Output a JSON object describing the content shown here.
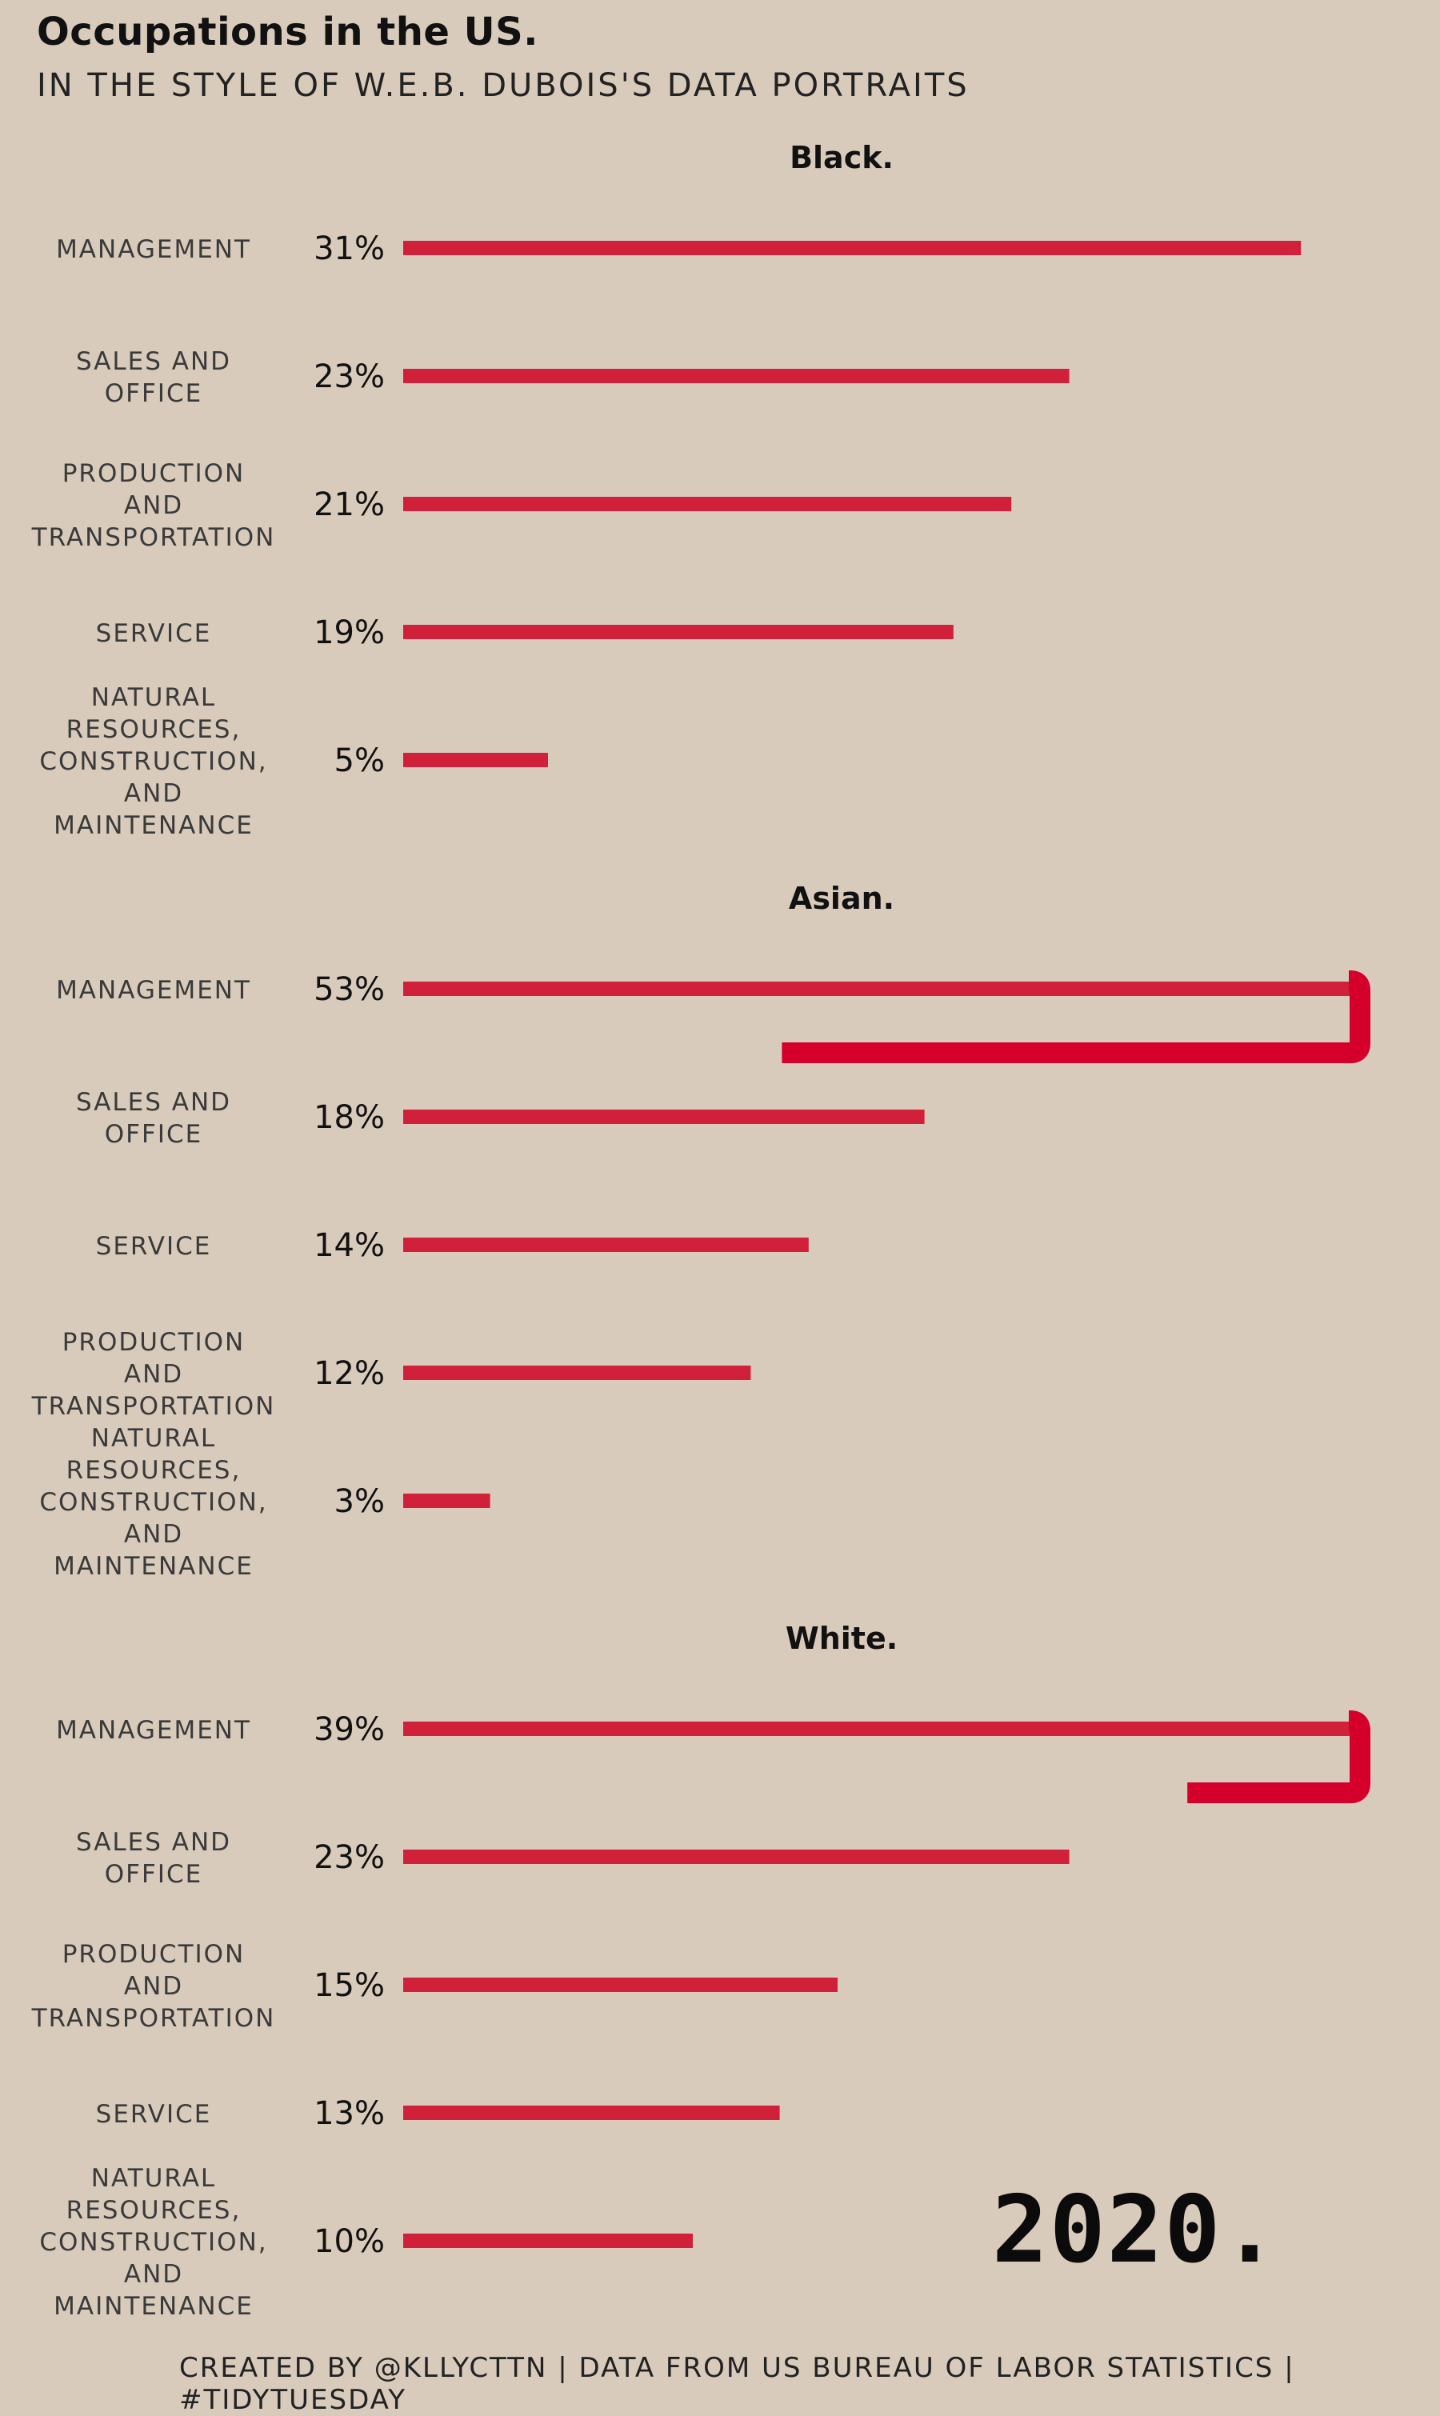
{
  "title": "Occupations in the US.",
  "subtitle": "IN THE STYLE OF W.E.B. DUBOIS'S DATA PORTRAITS",
  "year": "2020.",
  "caption": "CREATED BY @KLLYCTTN | DATA FROM US BUREAU OF LABOR STATISTICS | #TIDYTUESDAY",
  "colors": {
    "background": "#d9cbbb",
    "bar": "#d0203a",
    "bar_wrap": "#d4002b",
    "text": "#111111",
    "label": "#3a3a3a"
  },
  "chart_data": [
    {
      "type": "bar",
      "title": "Black.",
      "categories": [
        "MANAGEMENT",
        "SALES AND OFFICE",
        "PRODUCTION AND TRANSPORTATION",
        "SERVICE",
        "NATURAL RESOURCES, CONSTRUCTION, AND MAINTENANCE"
      ],
      "values": [
        31,
        23,
        21,
        19,
        5
      ],
      "value_labels": [
        "31%",
        "23%",
        "21%",
        "19%",
        "5%"
      ]
    },
    {
      "type": "bar",
      "title": "Asian.",
      "categories": [
        "MANAGEMENT",
        "SALES AND OFFICE",
        "SERVICE",
        "PRODUCTION AND TRANSPORTATION",
        "NATURAL RESOURCES, CONSTRUCTION, AND MAINTENANCE"
      ],
      "values": [
        53,
        18,
        14,
        12,
        3
      ],
      "value_labels": [
        "53%",
        "18%",
        "14%",
        "12%",
        "3%"
      ]
    },
    {
      "type": "bar",
      "title": "White.",
      "categories": [
        "MANAGEMENT",
        "SALES AND OFFICE",
        "PRODUCTION AND TRANSPORTATION",
        "SERVICE",
        "NATURAL RESOURCES, CONSTRUCTION, AND MAINTENANCE"
      ],
      "values": [
        39,
        23,
        15,
        13,
        10
      ],
      "value_labels": [
        "39%",
        "23%",
        "15%",
        "13%",
        "10%"
      ]
    }
  ]
}
